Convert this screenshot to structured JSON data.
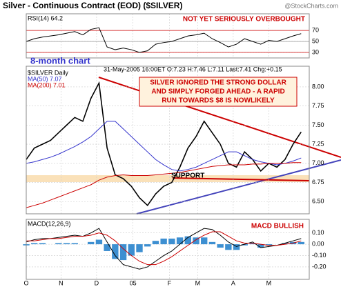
{
  "chart_data": [
    {
      "type": "line",
      "label": "RSI(14) 64.2",
      "annotation": "NOT YET SERIOUSLY OVERBOUGHT",
      "xlim": [
        0,
        35
      ],
      "ylim": [
        20,
        84
      ],
      "yticks": [
        70,
        50,
        30
      ],
      "grid": true,
      "x": [
        0,
        1,
        2,
        3,
        4,
        5,
        6,
        7,
        8,
        9,
        10,
        11,
        12,
        13,
        14,
        15,
        16,
        17,
        18,
        19,
        20,
        21,
        22,
        23,
        24,
        25,
        26,
        27,
        28,
        29,
        30,
        31,
        32,
        33,
        34
      ],
      "series": [
        {
          "color": "#000000",
          "values": [
            50,
            55,
            58,
            60,
            62,
            65,
            68,
            62,
            72,
            75,
            40,
            35,
            38,
            35,
            30,
            33,
            45,
            48,
            50,
            55,
            60,
            62,
            65,
            55,
            48,
            40,
            45,
            55,
            50,
            45,
            52,
            50,
            55,
            60,
            64.2
          ]
        }
      ]
    },
    {
      "type": "line",
      "title": "Silver - Continuous Contract (EOD) ($SILVER)",
      "credit": "@StockCharts.com",
      "subtitle": "8-month chart",
      "info": "31-May-2005 16:00ET O:7.23 H:7.46 L:7.11 Last:7.41 Chg:+0.15",
      "annotations": [
        "SILVER IGNORED THE STRONG DOLLAR",
        "AND SIMPLY FORGED AHEAD - A RAPID",
        "RUN TOWARDS $8 IS NOWLIKELY",
        "SUPPORT"
      ],
      "xlim": [
        0,
        35
      ],
      "ylim": [
        6.34,
        8.27
      ],
      "grid": true,
      "yticks": [
        {
          "value": 6.5,
          "label": "6.50"
        },
        {
          "value": 6.75,
          "label": "6.75"
        },
        {
          "value": 7,
          "label": "7.00"
        },
        {
          "value": 7.25,
          "label": "7.25"
        },
        {
          "value": 7.5,
          "label": "7.50"
        },
        {
          "value": 7.75,
          "label": "7.75"
        },
        {
          "value": 8,
          "label": "8.00"
        }
      ],
      "x": [
        0,
        1,
        2,
        3,
        4,
        5,
        6,
        7,
        8,
        9,
        10,
        11,
        12,
        13,
        14,
        15,
        16,
        17,
        18,
        19,
        20,
        21,
        22,
        23,
        24,
        25,
        26,
        27,
        28,
        29,
        30,
        31,
        32,
        33,
        34
      ],
      "series": [
        {
          "name": "$SILVER Daily",
          "color": "#000000",
          "values": [
            7.05,
            7.2,
            7.25,
            7.3,
            7.4,
            7.5,
            7.6,
            7.55,
            7.85,
            8.05,
            7.2,
            6.85,
            6.8,
            6.7,
            6.55,
            6.45,
            6.6,
            6.7,
            6.75,
            6.95,
            7.2,
            7.35,
            7.55,
            7.4,
            7.25,
            7,
            6.95,
            7.15,
            7.05,
            6.9,
            7,
            6.95,
            7.05,
            7.25,
            7.41
          ]
        },
        {
          "name": "MA(50) 7.07",
          "color": "#3333cc",
          "values": [
            7,
            7.02,
            7.05,
            7.08,
            7.12,
            7.17,
            7.22,
            7.28,
            7.35,
            7.45,
            7.55,
            7.55,
            7.45,
            7.35,
            7.25,
            7.15,
            7.05,
            6.98,
            6.92,
            6.9,
            6.92,
            6.95,
            7,
            7.05,
            7.1,
            7.15,
            7.15,
            7.1,
            7.05,
            7.02,
            7,
            6.98,
            7,
            7.03,
            7.07
          ]
        },
        {
          "name": "MA(200) 7.01",
          "color": "#cc0000",
          "values": [
            6.42,
            6.45,
            6.48,
            6.52,
            6.56,
            6.6,
            6.64,
            6.68,
            6.72,
            6.78,
            6.82,
            6.84,
            6.85,
            6.84,
            6.84,
            6.84,
            6.85,
            6.86,
            6.87,
            6.88,
            6.9,
            6.92,
            6.94,
            6.96,
            6.97,
            6.98,
            6.98,
            6.98,
            6.99,
            6.99,
            7,
            7,
            7,
            7.01,
            7.01
          ]
        }
      ]
    },
    {
      "type": "line",
      "label": "MACD(12,26,9)",
      "annotation": "MACD BULLISH",
      "xlim": [
        0,
        35
      ],
      "ylim": [
        -0.31,
        0.22
      ],
      "grid": true,
      "yticks": [
        {
          "value": 0.1,
          "label": "0.10"
        },
        {
          "value": 0,
          "label": "0.00"
        },
        {
          "value": -0.1,
          "label": "-0.10"
        },
        {
          "value": -0.2,
          "label": "-0.20"
        }
      ],
      "xticks": [
        {
          "value": 0,
          "label": "O"
        },
        {
          "value": 4.3,
          "label": "N"
        },
        {
          "value": 8.7,
          "label": "D"
        },
        {
          "value": 13.2,
          "label": "05"
        },
        {
          "value": 17.7,
          "label": "F"
        },
        {
          "value": 21.2,
          "label": "M"
        },
        {
          "value": 25.6,
          "label": "A"
        },
        {
          "value": 30,
          "label": "M"
        }
      ],
      "x": [
        0,
        1,
        2,
        3,
        4,
        5,
        6,
        7,
        8,
        9,
        10,
        11,
        12,
        13,
        14,
        15,
        16,
        17,
        18,
        19,
        20,
        21,
        22,
        23,
        24,
        25,
        26,
        27,
        28,
        29,
        30,
        31,
        32,
        33,
        34
      ],
      "series": [
        {
          "type": "bar",
          "color": "#3d8fd1",
          "values": [
            -0.01,
            0.01,
            0.01,
            0,
            0.01,
            0.01,
            0.01,
            0,
            0.02,
            0.04,
            -0.06,
            -0.13,
            -0.14,
            -0.1,
            -0.07,
            -0.02,
            0.03,
            0.05,
            0.05,
            0.06,
            0.07,
            0.06,
            0.06,
            0.02,
            -0.03,
            -0.05,
            -0.05,
            -0.01,
            0.01,
            -0.03,
            -0.01,
            0,
            0.01,
            0.02,
            0.02
          ]
        },
        {
          "color": "#000000",
          "values": [
            0.02,
            0.04,
            0.05,
            0.05,
            0.06,
            0.07,
            0.08,
            0.07,
            0.1,
            0.14,
            0.02,
            -0.1,
            -0.18,
            -0.2,
            -0.22,
            -0.2,
            -0.15,
            -0.1,
            -0.06,
            0,
            0.06,
            0.1,
            0.14,
            0.13,
            0.08,
            0.02,
            -0.02,
            0,
            0.02,
            -0.03,
            -0.02,
            -0.01,
            0.01,
            0.03,
            0.05
          ]
        },
        {
          "color": "#cc0000",
          "values": [
            0.03,
            0.03,
            0.04,
            0.05,
            0.05,
            0.06,
            0.07,
            0.07,
            0.08,
            0.1,
            0.08,
            0.03,
            -0.04,
            -0.1,
            -0.15,
            -0.18,
            -0.18,
            -0.15,
            -0.11,
            -0.06,
            -0.01,
            0.04,
            0.08,
            0.11,
            0.11,
            0.07,
            0.03,
            0.01,
            0.01,
            0,
            -0.01,
            -0.01,
            0,
            0.01,
            0.03
          ]
        }
      ]
    }
  ]
}
